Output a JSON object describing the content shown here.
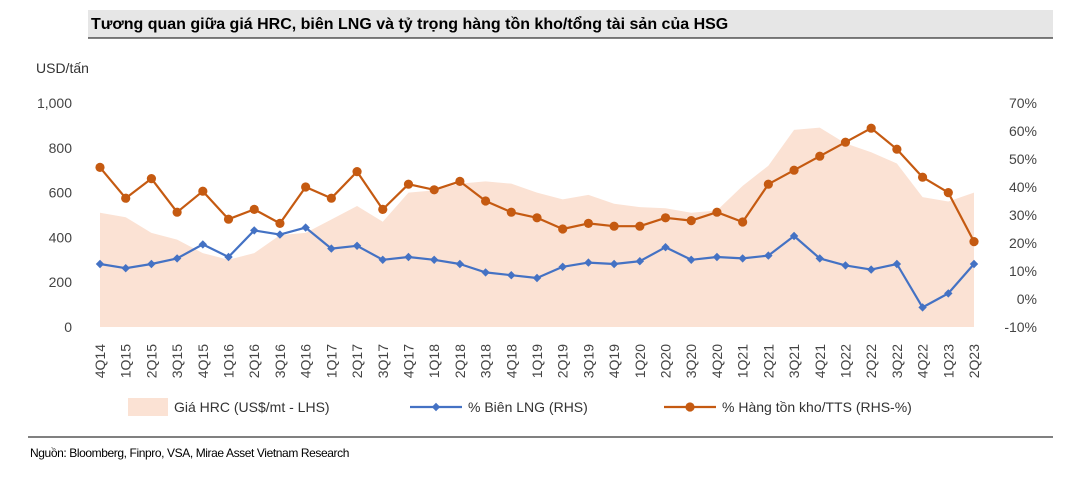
{
  "chart_data": {
    "type": "area+line",
    "title": "Tương quan giữa giá HRC, biên LNG và tỷ trọng hàng tồn kho/tổng tài sản của HSG",
    "left_axis_unit": "USD/tấn",
    "source": "Nguồn: Bloomberg, Finpro, VSA, Mirae Asset Vietnam Research",
    "categories": [
      "4Q14",
      "1Q15",
      "2Q15",
      "3Q15",
      "4Q15",
      "1Q16",
      "2Q16",
      "3Q16",
      "4Q16",
      "1Q17",
      "2Q17",
      "3Q17",
      "4Q17",
      "1Q18",
      "2Q18",
      "3Q18",
      "4Q18",
      "1Q19",
      "2Q19",
      "3Q19",
      "4Q19",
      "1Q20",
      "2Q20",
      "3Q20",
      "4Q20",
      "1Q21",
      "2Q21",
      "3Q21",
      "4Q21",
      "1Q22",
      "2Q22",
      "3Q22",
      "4Q22",
      "1Q23",
      "2Q23"
    ],
    "left_axis": {
      "min": 0,
      "max": 1000,
      "step": 200,
      "tick_labels": [
        "0",
        "200",
        "400",
        "600",
        "800",
        "1,000"
      ]
    },
    "right_axis": {
      "min": -10,
      "max": 70,
      "step": 10,
      "tick_labels": [
        "-10%",
        "0%",
        "10%",
        "20%",
        "30%",
        "40%",
        "50%",
        "60%",
        "70%"
      ]
    },
    "series": [
      {
        "name": "Giá HRC (US$/mt - LHS)",
        "kind": "area",
        "axis": "left",
        "color": "#fbe2d4",
        "values": [
          510,
          490,
          420,
          390,
          330,
          300,
          330,
          410,
          420,
          480,
          540,
          470,
          600,
          610,
          640,
          650,
          640,
          600,
          570,
          590,
          550,
          535,
          530,
          510,
          520,
          630,
          720,
          880,
          890,
          820,
          780,
          730,
          580,
          560,
          600
        ]
      },
      {
        "name": "% Biên LNG (RHS)",
        "kind": "line",
        "axis": "right",
        "color": "#4472c4",
        "values": [
          12.5,
          11,
          12.5,
          14.5,
          19.5,
          15,
          24.5,
          23,
          25.5,
          18,
          19,
          14,
          15,
          14,
          12.5,
          9.5,
          8.5,
          7.5,
          11.5,
          13,
          12.5,
          13.5,
          18.5,
          14,
          15,
          14.5,
          15.5,
          22.5,
          14.5,
          12,
          10.5,
          12.5,
          -3,
          2,
          12.5
        ]
      },
      {
        "name": "% Hàng tồn kho/TTS (RHS-%)",
        "kind": "line",
        "axis": "right",
        "color": "#c55a11",
        "values": [
          47,
          36,
          43,
          31,
          38.5,
          28.5,
          32,
          27,
          40,
          36,
          45.5,
          32,
          41,
          39,
          42,
          35,
          31,
          29,
          25,
          27,
          26,
          26,
          29,
          28,
          31,
          27.5,
          41,
          46,
          51,
          56,
          61,
          53.5,
          43.5,
          38,
          20.5
        ]
      }
    ]
  }
}
